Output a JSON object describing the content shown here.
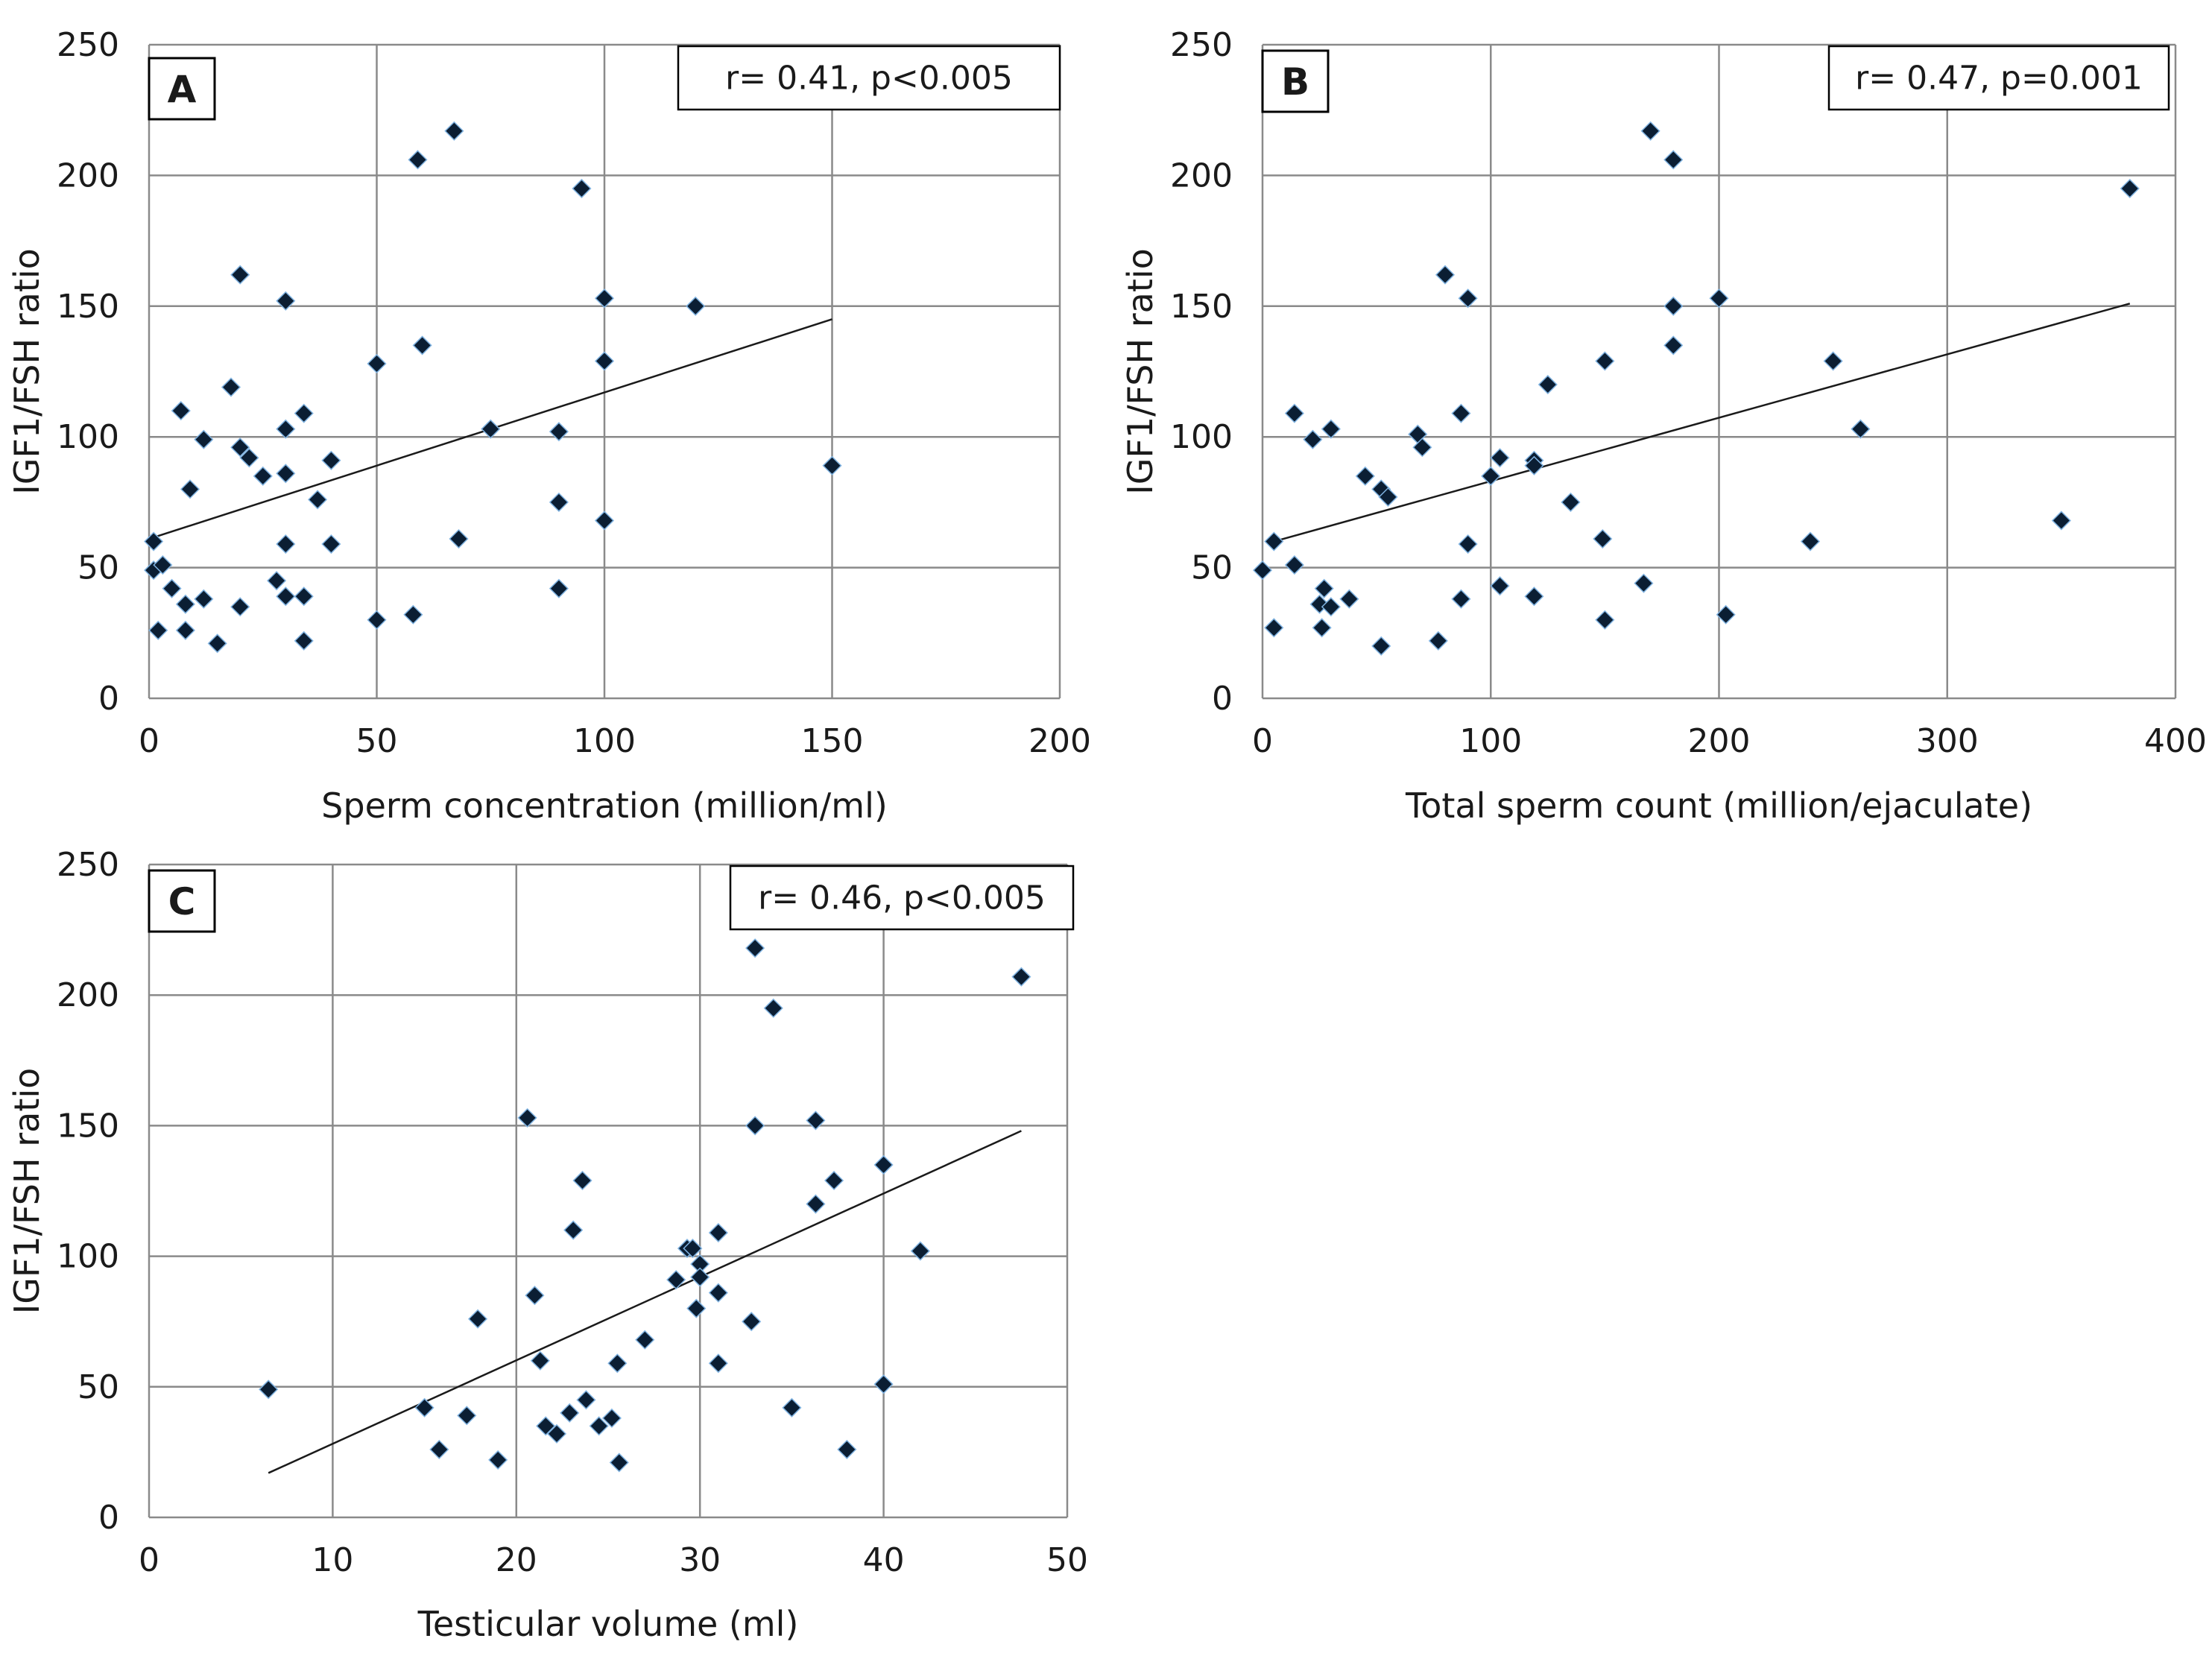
{
  "colors": {
    "grid": "#8a8a8a",
    "axis": "#8a8a8a",
    "marker": "#0b1e33",
    "marker_edge": "#7fb2e0",
    "trend": "#1a1a1a"
  },
  "chart_data": [
    {
      "type": "scatter",
      "panel_label": "A",
      "annotation": "r= 0.41, p<0.005",
      "xlabel": "Sperm concentration (million/ml)",
      "ylabel": "IGF1/FSH ratio",
      "xlim": [
        0,
        200
      ],
      "ylim": [
        0,
        250
      ],
      "xticks": [
        0,
        50,
        100,
        150,
        200
      ],
      "yticks": [
        0,
        50,
        100,
        150,
        200,
        250
      ],
      "grid": true,
      "trendline": {
        "x": [
          0,
          150
        ],
        "y": [
          61,
          145
        ]
      },
      "points": [
        [
          1,
          60
        ],
        [
          1,
          49
        ],
        [
          2,
          26
        ],
        [
          3,
          51
        ],
        [
          5,
          42
        ],
        [
          7,
          110
        ],
        [
          8,
          36
        ],
        [
          8,
          26
        ],
        [
          9,
          80
        ],
        [
          12,
          99
        ],
        [
          12,
          38
        ],
        [
          15,
          21
        ],
        [
          18,
          119
        ],
        [
          20,
          162
        ],
        [
          20,
          96
        ],
        [
          20,
          35
        ],
        [
          22,
          92
        ],
        [
          25,
          85
        ],
        [
          28,
          45
        ],
        [
          30,
          152
        ],
        [
          30,
          103
        ],
        [
          30,
          86
        ],
        [
          30,
          59
        ],
        [
          30,
          39
        ],
        [
          34,
          109
        ],
        [
          34,
          39
        ],
        [
          34,
          22
        ],
        [
          37,
          76
        ],
        [
          40,
          91
        ],
        [
          40,
          59
        ],
        [
          50,
          128
        ],
        [
          50,
          30
        ],
        [
          58,
          32
        ],
        [
          59,
          206
        ],
        [
          60,
          135
        ],
        [
          67,
          217
        ],
        [
          68,
          61
        ],
        [
          75,
          103
        ],
        [
          90,
          102
        ],
        [
          90,
          75
        ],
        [
          90,
          42
        ],
        [
          95,
          195
        ],
        [
          100,
          153
        ],
        [
          100,
          129
        ],
        [
          100,
          68
        ],
        [
          120,
          150
        ],
        [
          150,
          89
        ]
      ]
    },
    {
      "type": "scatter",
      "panel_label": "B",
      "annotation": "r= 0.47, p=0.001",
      "xlabel": "Total sperm count (million/ejaculate)",
      "ylabel": "IGF1/FSH ratio",
      "xlim": [
        0,
        400
      ],
      "ylim": [
        0,
        250
      ],
      "xticks": [
        0,
        100,
        200,
        300,
        400
      ],
      "yticks": [
        0,
        50,
        100,
        150,
        200,
        250
      ],
      "grid": true,
      "trendline": {
        "x": [
          5,
          380
        ],
        "y": [
          60,
          151
        ]
      },
      "points": [
        [
          0,
          49
        ],
        [
          5,
          60
        ],
        [
          5,
          27
        ],
        [
          14,
          109
        ],
        [
          14,
          51
        ],
        [
          22,
          99
        ],
        [
          25,
          36
        ],
        [
          26,
          27
        ],
        [
          27,
          42
        ],
        [
          30,
          103
        ],
        [
          30,
          35
        ],
        [
          38,
          38
        ],
        [
          45,
          85
        ],
        [
          52,
          80
        ],
        [
          52,
          20
        ],
        [
          55,
          77
        ],
        [
          68,
          101
        ],
        [
          70,
          96
        ],
        [
          77,
          22
        ],
        [
          80,
          162
        ],
        [
          87,
          109
        ],
        [
          87,
          38
        ],
        [
          90,
          153
        ],
        [
          90,
          59
        ],
        [
          100,
          85
        ],
        [
          104,
          92
        ],
        [
          104,
          43
        ],
        [
          119,
          91
        ],
        [
          119,
          89
        ],
        [
          119,
          39
        ],
        [
          125,
          120
        ],
        [
          135,
          75
        ],
        [
          149,
          61
        ],
        [
          150,
          129
        ],
        [
          150,
          30
        ],
        [
          167,
          44
        ],
        [
          170,
          217
        ],
        [
          180,
          206
        ],
        [
          180,
          150
        ],
        [
          180,
          135
        ],
        [
          200,
          153
        ],
        [
          203,
          32
        ],
        [
          240,
          60
        ],
        [
          250,
          129
        ],
        [
          262,
          103
        ],
        [
          350,
          68
        ],
        [
          380,
          195
        ]
      ]
    },
    {
      "type": "scatter",
      "panel_label": "C",
      "annotation": "r= 0.46, p<0.005",
      "xlabel": "Testicular volume (ml)",
      "ylabel": "IGF1/FSH ratio",
      "xlim": [
        0,
        50
      ],
      "ylim": [
        0,
        250
      ],
      "xticks": [
        0,
        10,
        20,
        30,
        40,
        50
      ],
      "yticks": [
        0,
        50,
        100,
        150,
        200,
        250
      ],
      "grid": true,
      "trendline": {
        "x": [
          6.5,
          47.5
        ],
        "y": [
          17,
          148
        ]
      },
      "points": [
        [
          6.5,
          49
        ],
        [
          15,
          42
        ],
        [
          15.8,
          26
        ],
        [
          17.3,
          39
        ],
        [
          17.9,
          76
        ],
        [
          19,
          22
        ],
        [
          20.6,
          153
        ],
        [
          21,
          85
        ],
        [
          21.3,
          60
        ],
        [
          21.6,
          35
        ],
        [
          22.2,
          32
        ],
        [
          22.9,
          40
        ],
        [
          23.1,
          110
        ],
        [
          23.6,
          129
        ],
        [
          23.8,
          45
        ],
        [
          24.5,
          35
        ],
        [
          25.2,
          38
        ],
        [
          25.5,
          59
        ],
        [
          25.6,
          21
        ],
        [
          27,
          68
        ],
        [
          28.7,
          91
        ],
        [
          29.3,
          103
        ],
        [
          29.6,
          103
        ],
        [
          29.8,
          80
        ],
        [
          30,
          97
        ],
        [
          30,
          92
        ],
        [
          31,
          109
        ],
        [
          31,
          86
        ],
        [
          31,
          59
        ],
        [
          32.8,
          75
        ],
        [
          33,
          218
        ],
        [
          33,
          150
        ],
        [
          34,
          195
        ],
        [
          35,
          42
        ],
        [
          36.3,
          152
        ],
        [
          36.3,
          120
        ],
        [
          37.3,
          129
        ],
        [
          38,
          26
        ],
        [
          40,
          135
        ],
        [
          40,
          51
        ],
        [
          42,
          102
        ],
        [
          47.5,
          207
        ]
      ]
    }
  ]
}
